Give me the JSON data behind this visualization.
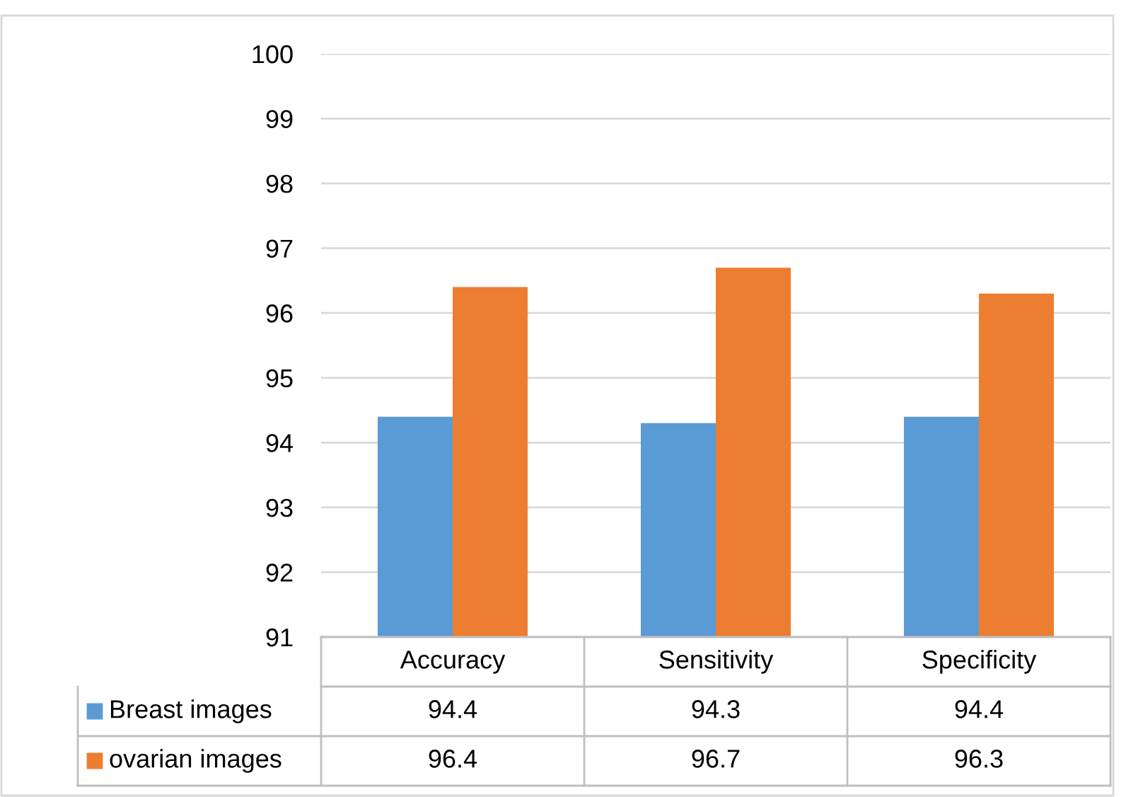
{
  "chart_data": {
    "type": "bar",
    "categories": [
      "Accuracy",
      "Sensitivity",
      "Specificity"
    ],
    "series": [
      {
        "name": "Breast images",
        "color": "#5b9bd5",
        "values": [
          94.4,
          94.3,
          94.4
        ]
      },
      {
        "name": "ovarian images",
        "color": "#ed7d31",
        "values": [
          96.4,
          96.7,
          96.3
        ]
      }
    ],
    "ylim": [
      91,
      100
    ],
    "yticks": [
      91,
      92,
      93,
      94,
      95,
      96,
      97,
      98,
      99,
      100
    ],
    "grid": "y",
    "legend": "bottom left",
    "data_labels": true
  }
}
